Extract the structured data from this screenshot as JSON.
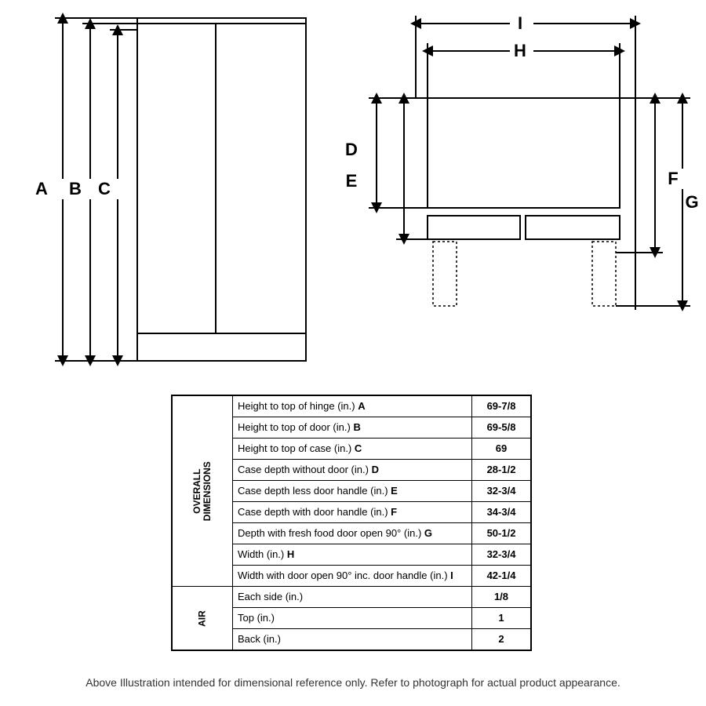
{
  "front_view": {
    "labels": {
      "A": "A",
      "B": "B",
      "C": "C"
    },
    "arrow_color": "#000000",
    "stroke_width": 2,
    "outline_color": "#000000",
    "fill_color": "#ffffff"
  },
  "top_view": {
    "labels": {
      "D": "D",
      "E": "E",
      "F": "F",
      "G": "G",
      "H": "H",
      "I": "I"
    },
    "arrow_color": "#000000",
    "stroke_width": 2,
    "outline_color": "#000000",
    "fill_color": "#ffffff",
    "dotted_color": "#000000"
  },
  "table": {
    "group1": "OVERALL\nDIMENSIONS",
    "group2": "AIR",
    "rows_overall": [
      {
        "label": "Height to top of hinge (in.) ",
        "letter": "A",
        "value": "69-7/8"
      },
      {
        "label": "Height to top of door (in.) ",
        "letter": "B",
        "value": "69-5/8"
      },
      {
        "label": "Height to top of case (in.) ",
        "letter": "C",
        "value": "69"
      },
      {
        "label": "Case depth without door (in.) ",
        "letter": "D",
        "value": "28-1/2"
      },
      {
        "label": "Case depth less door handle (in.) ",
        "letter": "E",
        "value": "32-3/4"
      },
      {
        "label": "Case depth with door handle (in.) ",
        "letter": "F",
        "value": "34-3/4"
      },
      {
        "label": "Depth with fresh food door open 90° (in.) ",
        "letter": "G",
        "value": "50-1/2"
      },
      {
        "label": "Width (in.) ",
        "letter": "H",
        "value": "32-3/4"
      },
      {
        "label": "Width with door open 90° inc. door handle (in.) ",
        "letter": "I",
        "value": "42-1/4"
      }
    ],
    "rows_air": [
      {
        "label": "Each side (in.)",
        "value": "1/8"
      },
      {
        "label": "Top (in.)",
        "value": "1"
      },
      {
        "label": "Back (in.)",
        "value": "2"
      }
    ]
  },
  "footnote": "Above Illustration intended for dimensional reference only. Refer to photograph for actual product appearance.",
  "typography": {
    "label_fontsize": 22,
    "label_fontweight": "bold",
    "table_fontsize": 13
  },
  "colors": {
    "background": "#ffffff",
    "stroke": "#000000",
    "text": "#000000",
    "footnote": "#333333"
  }
}
